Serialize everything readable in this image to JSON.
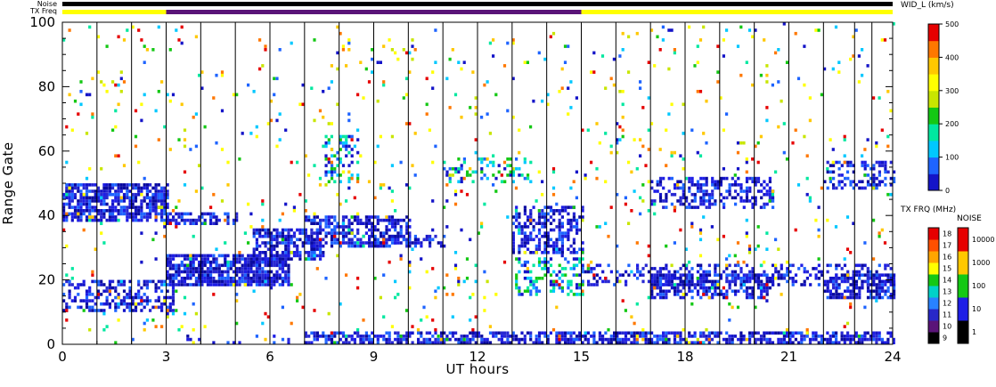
{
  "chart_data": {
    "type": "heatmap",
    "title": "",
    "xlabel": "UT hours",
    "ylabel": "Range Gate",
    "xlim": [
      0,
      24
    ],
    "ylim": [
      0,
      100
    ],
    "x_ticks": [
      0,
      3,
      6,
      9,
      12,
      15,
      18,
      21,
      24
    ],
    "y_ticks": [
      0,
      20,
      40,
      60,
      80,
      100
    ],
    "grid": false,
    "scan_boundaries_ut": [
      1.0,
      2.0,
      3.0,
      4.0,
      5.0,
      6.0,
      7.0,
      8.0,
      9.0,
      10.0,
      11.0,
      12.0,
      13.0,
      14.0,
      15.0,
      16.0,
      17.0,
      18.0,
      19.0,
      20.0,
      21.0,
      22.0,
      22.9,
      23.4
    ],
    "parameter_label": "WID_L (km/s)",
    "colorbar_main": {
      "label": "WID_L (km/s)",
      "min": 0,
      "max": 500,
      "ticks": [
        0,
        100,
        200,
        300,
        400,
        500
      ],
      "colors": [
        "#1414c8",
        "#1e64ff",
        "#00c8ff",
        "#00e8a0",
        "#14c814",
        "#c8e600",
        "#ffff00",
        "#ffc800",
        "#ff7800",
        "#e60000"
      ]
    },
    "colorbar_tx_freq": {
      "label": "TX FRQ (MHz)",
      "ticks": [
        9,
        10,
        11,
        12,
        13,
        14,
        15,
        16,
        17,
        18
      ],
      "colors": [
        "#000000",
        "#5a1478",
        "#2828c8",
        "#2882ff",
        "#00d2c8",
        "#14c814",
        "#ffff00",
        "#ffa500",
        "#ff5000",
        "#e60000"
      ]
    },
    "colorbar_noise": {
      "label": "NOISE",
      "ticks": [
        1,
        10,
        100,
        1000,
        10000
      ],
      "colors": [
        "#000000",
        "#1e1ee6",
        "#14c814",
        "#ffc800",
        "#e60000"
      ]
    },
    "top_bars": {
      "noise_label": "Noise",
      "txfreq_label": "TX Freq",
      "noise_color": "#000000",
      "txfreq_segments": [
        {
          "start": 0,
          "end": 3,
          "color": "#ffff00"
        },
        {
          "start": 3,
          "end": 15,
          "color": "#5a1478"
        },
        {
          "start": 15,
          "end": 24,
          "color": "#ffff00"
        }
      ]
    },
    "scatter_regions": [
      {
        "t0": 0.0,
        "t1": 3.0,
        "g0": 38,
        "g1": 50,
        "density": 0.75,
        "palette": "blue"
      },
      {
        "t0": 3.0,
        "t1": 5.0,
        "g0": 37,
        "g1": 41,
        "density": 0.55,
        "palette": "blue"
      },
      {
        "t0": 0.0,
        "t1": 3.2,
        "g0": 10,
        "g1": 20,
        "density": 0.45,
        "palette": "blue"
      },
      {
        "t0": 3.0,
        "t1": 6.5,
        "g0": 18,
        "g1": 28,
        "density": 0.8,
        "palette": "blue"
      },
      {
        "t0": 5.5,
        "t1": 7.5,
        "g0": 26,
        "g1": 36,
        "density": 0.75,
        "palette": "blue"
      },
      {
        "t0": 7.0,
        "t1": 10.0,
        "g0": 30,
        "g1": 40,
        "density": 0.55,
        "palette": "blue"
      },
      {
        "t0": 9.0,
        "t1": 11.0,
        "g0": 30,
        "g1": 34,
        "density": 0.55,
        "palette": "blue"
      },
      {
        "t0": 13.0,
        "t1": 15.0,
        "g0": 28,
        "g1": 43,
        "density": 0.5,
        "palette": "blue"
      },
      {
        "t0": 13.0,
        "t1": 15.0,
        "g0": 15,
        "g1": 27,
        "density": 0.3,
        "palette": "mix"
      },
      {
        "t0": 15.0,
        "t1": 24.0,
        "g0": 18,
        "g1": 25,
        "density": 0.35,
        "palette": "blue"
      },
      {
        "t0": 17.0,
        "t1": 20.5,
        "g0": 14,
        "g1": 22,
        "density": 0.55,
        "palette": "blue"
      },
      {
        "t0": 22.0,
        "t1": 24.0,
        "g0": 14,
        "g1": 22,
        "density": 0.6,
        "palette": "blue"
      },
      {
        "t0": 17.0,
        "t1": 20.5,
        "g0": 42,
        "g1": 52,
        "density": 0.4,
        "palette": "blue"
      },
      {
        "t0": 22.0,
        "t1": 24.0,
        "g0": 48,
        "g1": 57,
        "density": 0.4,
        "palette": "blue"
      },
      {
        "t0": 7.0,
        "t1": 24.0,
        "g0": 0,
        "g1": 4,
        "density": 0.65,
        "palette": "blue"
      },
      {
        "t0": 3.5,
        "t1": 7.0,
        "g0": 0,
        "g1": 3,
        "density": 0.15,
        "palette": "blue"
      },
      {
        "t0": 11.0,
        "t1": 13.5,
        "g0": 50,
        "g1": 58,
        "density": 0.25,
        "palette": "mix"
      },
      {
        "t0": 7.5,
        "t1": 8.5,
        "g0": 50,
        "g1": 65,
        "density": 0.3,
        "palette": "mix"
      },
      {
        "t0": 0.0,
        "t1": 24.0,
        "g0": 0,
        "g1": 100,
        "density": 0.03,
        "palette": "all"
      }
    ]
  }
}
